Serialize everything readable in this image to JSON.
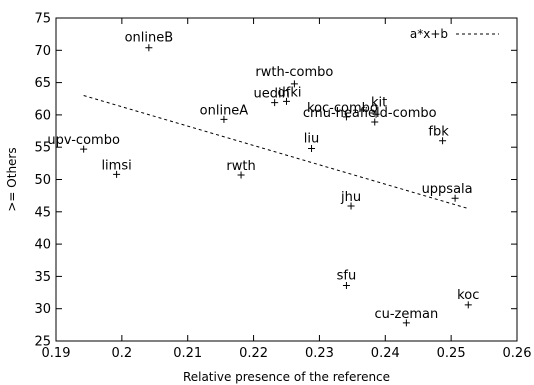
{
  "chart_data": {
    "type": "scatter",
    "title": "",
    "xlabel": "Relative presence of the reference",
    "ylabel": ">= Others",
    "xlim": [
      0.19,
      0.26
    ],
    "ylim": [
      25,
      75
    ],
    "xticks": [
      0.19,
      0.2,
      0.21,
      0.22,
      0.23,
      0.24,
      0.25,
      0.26
    ],
    "xtick_labels": [
      "0.19",
      "0.2",
      "0.21",
      "0.22",
      "0.23",
      "0.24",
      "0.25",
      "0.26"
    ],
    "yticks": [
      25,
      30,
      35,
      40,
      45,
      50,
      55,
      60,
      65,
      70,
      75
    ],
    "ytick_labels": [
      "25",
      "30",
      "35",
      "40",
      "45",
      "50",
      "55",
      "60",
      "65",
      "70",
      "75"
    ],
    "grid": false,
    "legend": {
      "position": "top-right",
      "entries": [
        {
          "label": "a*x+b",
          "style": "dashed"
        }
      ]
    },
    "points": [
      {
        "label": "onlineB",
        "x": 0.2041,
        "y": 70.4
      },
      {
        "label": "rwth-combo",
        "x": 0.2262,
        "y": 64.8
      },
      {
        "label": "uedin",
        "x": 0.2232,
        "y": 61.9
      },
      {
        "label": "dfki",
        "x": 0.225,
        "y": 62.1
      },
      {
        "label": "onlineA",
        "x": 0.2155,
        "y": 59.3
      },
      {
        "label": "koc-combo",
        "x": 0.2341,
        "y": 59.7
      },
      {
        "label": "kit",
        "x": 0.2386,
        "y": 60.1
      },
      {
        "label": "cmu-heafield-combo",
        "x": 0.2384,
        "y": 58.9
      },
      {
        "label": "fbk",
        "x": 0.2487,
        "y": 56.0
      },
      {
        "label": "upv-combo",
        "x": 0.1942,
        "y": 54.7
      },
      {
        "label": "liu",
        "x": 0.2288,
        "y": 54.8
      },
      {
        "label": "limsi",
        "x": 0.1992,
        "y": 50.8
      },
      {
        "label": "rwth",
        "x": 0.2181,
        "y": 50.7
      },
      {
        "label": "jhu",
        "x": 0.2348,
        "y": 45.9
      },
      {
        "label": "uppsala",
        "x": 0.2506,
        "y": 47.1
      },
      {
        "label": "sfu",
        "x": 0.2341,
        "y": 33.6
      },
      {
        "label": "koc",
        "x": 0.2526,
        "y": 30.6
      },
      {
        "label": "cu-zeman",
        "x": 0.2432,
        "y": 27.8
      }
    ],
    "fit_line": {
      "label": "a*x+b",
      "x": [
        0.1942,
        0.2526
      ],
      "y": [
        63.0,
        45.5
      ]
    }
  }
}
